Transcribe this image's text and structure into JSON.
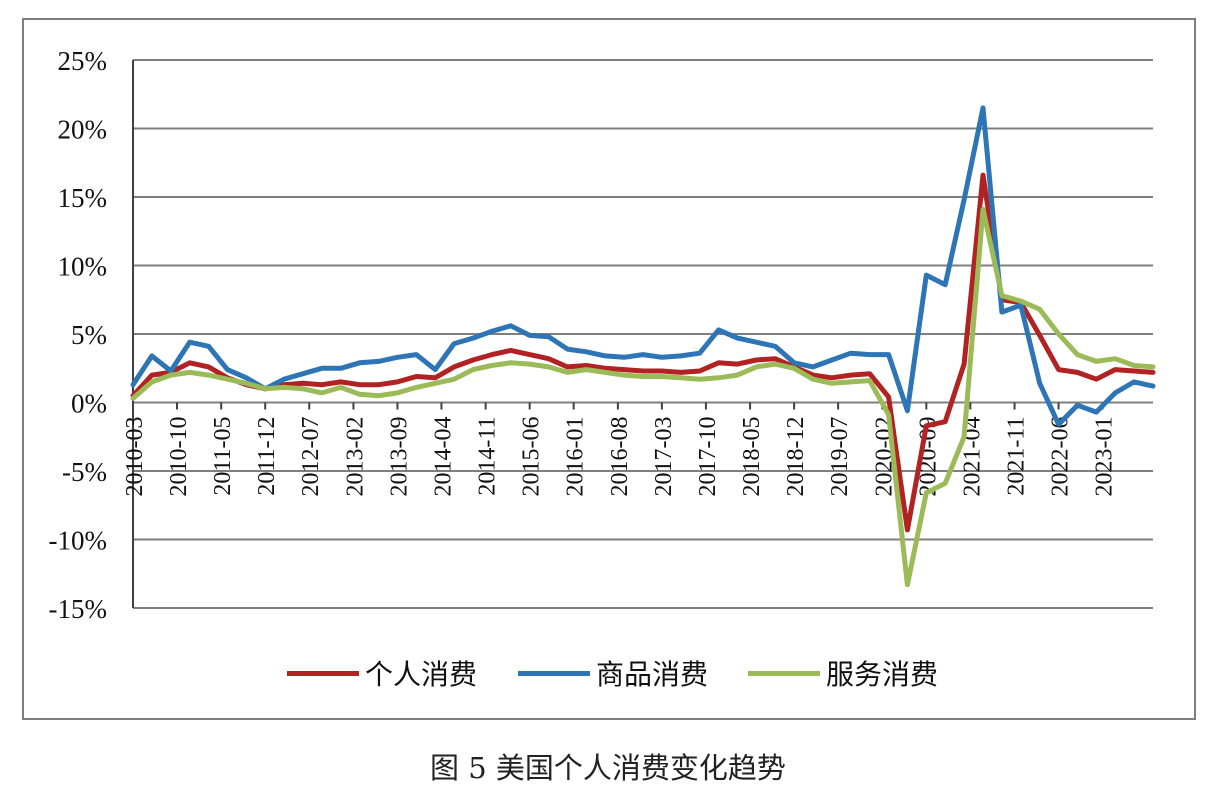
{
  "caption": "图 5  美国个人消费变化趋势",
  "colors": {
    "personal": "#b22222",
    "goods": "#2e75b6",
    "services": "#9bbb59",
    "grid": "#7f7f7f",
    "axis": "#404040"
  },
  "chart_data": {
    "type": "line",
    "title": "",
    "xlabel": "",
    "ylabel": "",
    "ylim": [
      -15,
      25
    ],
    "y_ticks": [
      25,
      20,
      15,
      10,
      5,
      0,
      -5,
      -10,
      -15
    ],
    "y_tick_labels": [
      "25%",
      "20%",
      "15%",
      "10%",
      "5%",
      "0%",
      "-5%",
      "-10%",
      "-15%"
    ],
    "grid": true,
    "legend_position": "bottom",
    "x": [
      "2010-03",
      "2010-06",
      "2010-09",
      "2010-12",
      "2011-03",
      "2011-06",
      "2011-09",
      "2011-12",
      "2012-03",
      "2012-06",
      "2012-09",
      "2012-12",
      "2013-03",
      "2013-06",
      "2013-09",
      "2013-12",
      "2014-03",
      "2014-06",
      "2014-09",
      "2014-12",
      "2015-03",
      "2015-06",
      "2015-09",
      "2015-12",
      "2016-03",
      "2016-06",
      "2016-09",
      "2016-12",
      "2017-03",
      "2017-06",
      "2017-09",
      "2017-12",
      "2018-03",
      "2018-06",
      "2018-09",
      "2018-12",
      "2019-03",
      "2019-06",
      "2019-09",
      "2019-12",
      "2020-03",
      "2020-06",
      "2020-09",
      "2020-12",
      "2021-03",
      "2021-06",
      "2021-09",
      "2021-12",
      "2022-03",
      "2022-06",
      "2022-09",
      "2022-12",
      "2023-03",
      "2023-06",
      "2023-09"
    ],
    "x_tick_labels": [
      {
        "label": "2010-03",
        "index": 0
      },
      {
        "label": "2010-10",
        "index": 2.33
      },
      {
        "label": "2011-05",
        "index": 4.67
      },
      {
        "label": "2011-12",
        "index": 7
      },
      {
        "label": "2012-07",
        "index": 9.33
      },
      {
        "label": "2013-02",
        "index": 11.67
      },
      {
        "label": "2013-09",
        "index": 14
      },
      {
        "label": "2014-04",
        "index": 16.33
      },
      {
        "label": "2014-11",
        "index": 18.67
      },
      {
        "label": "2015-06",
        "index": 21
      },
      {
        "label": "2016-01",
        "index": 23.33
      },
      {
        "label": "2016-08",
        "index": 25.67
      },
      {
        "label": "2017-03",
        "index": 28
      },
      {
        "label": "2017-10",
        "index": 30.33
      },
      {
        "label": "2018-05",
        "index": 32.67
      },
      {
        "label": "2018-12",
        "index": 35
      },
      {
        "label": "2019-07",
        "index": 37.33
      },
      {
        "label": "2020-02",
        "index": 39.67
      },
      {
        "label": "2020-09",
        "index": 42
      },
      {
        "label": "2021-04",
        "index": 44.33
      },
      {
        "label": "2021-11",
        "index": 46.67
      },
      {
        "label": "2022-06",
        "index": 49
      },
      {
        "label": "2023-01",
        "index": 51.33
      }
    ],
    "series": [
      {
        "name": "个人消费",
        "color": "#b22222",
        "values": [
          0.5,
          2.0,
          2.2,
          2.9,
          2.6,
          1.8,
          1.3,
          1.0,
          1.3,
          1.4,
          1.3,
          1.5,
          1.3,
          1.3,
          1.5,
          1.9,
          1.8,
          2.6,
          3.1,
          3.5,
          3.8,
          3.5,
          3.2,
          2.6,
          2.7,
          2.5,
          2.4,
          2.3,
          2.3,
          2.2,
          2.3,
          2.9,
          2.8,
          3.1,
          3.2,
          2.6,
          2.0,
          1.8,
          2.0,
          2.1,
          0.4,
          -9.3,
          -1.7,
          -1.4,
          2.8,
          16.6,
          7.5,
          7.3,
          4.9,
          2.4,
          2.2,
          1.7,
          2.4,
          2.3,
          2.2
        ]
      },
      {
        "name": "商品消费",
        "color": "#2e75b6",
        "values": [
          1.3,
          3.4,
          2.3,
          4.4,
          4.1,
          2.4,
          1.8,
          1.0,
          1.7,
          2.1,
          2.5,
          2.5,
          2.9,
          3.0,
          3.3,
          3.5,
          2.4,
          4.3,
          4.7,
          5.2,
          5.6,
          4.9,
          4.8,
          3.9,
          3.7,
          3.4,
          3.3,
          3.5,
          3.3,
          3.4,
          3.6,
          5.3,
          4.7,
          4.4,
          4.1,
          2.9,
          2.6,
          3.1,
          3.6,
          3.5,
          3.5,
          -0.6,
          9.3,
          8.6,
          14.8,
          21.5,
          6.6,
          7.1,
          1.4,
          -1.6,
          -0.2,
          -0.7,
          0.7,
          1.5,
          1.2
        ]
      },
      {
        "name": "服务消费",
        "color": "#9bbb59",
        "values": [
          0.3,
          1.5,
          2.0,
          2.2,
          2.0,
          1.7,
          1.4,
          1.0,
          1.1,
          1.0,
          0.7,
          1.1,
          0.6,
          0.5,
          0.7,
          1.1,
          1.4,
          1.7,
          2.4,
          2.7,
          2.9,
          2.8,
          2.6,
          2.2,
          2.4,
          2.2,
          2.0,
          1.9,
          1.9,
          1.8,
          1.7,
          1.8,
          2.0,
          2.6,
          2.8,
          2.5,
          1.7,
          1.4,
          1.5,
          1.6,
          -0.9,
          -13.3,
          -6.6,
          -5.9,
          -2.5,
          14.1,
          7.8,
          7.4,
          6.8,
          5.0,
          3.5,
          3.0,
          3.2,
          2.7,
          2.6
        ]
      }
    ]
  }
}
